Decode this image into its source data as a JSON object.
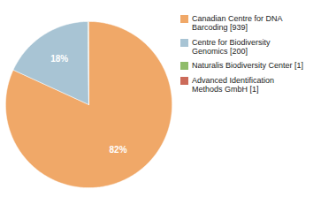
{
  "chart_data": {
    "type": "pie",
    "categories": [
      "Canadian Centre for DNA\nBarcoding [939]",
      "Centre for Biodiversity\nGenomics [200]",
      "Naturalis Biodiversity Center [1]",
      "Advanced Identification\nMethods GmbH [1]"
    ],
    "values": [
      82,
      18,
      0.09,
      0.09
    ],
    "value_labels": [
      "82%",
      "18%",
      null,
      null
    ],
    "data_labels": true,
    "colors": [
      "#f0a868",
      "#a8c4d4",
      "#8fbc6a",
      "#cc6b5a"
    ],
    "legend": "right"
  }
}
